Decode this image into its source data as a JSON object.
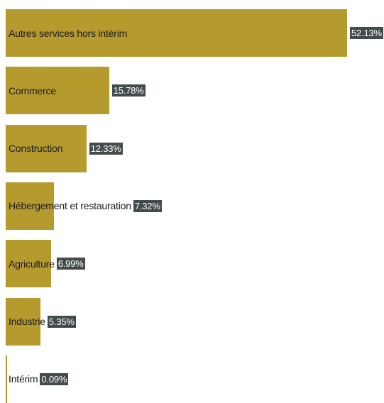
{
  "chart_data": {
    "type": "bar",
    "orientation": "horizontal",
    "categories": [
      "Autres services hors intérim",
      "Commerce",
      "Construction",
      "Hébergement et restauration",
      "Agriculture",
      "Industrie",
      "Intérim"
    ],
    "values": [
      52.13,
      15.78,
      12.33,
      7.32,
      6.99,
      5.35,
      0.09
    ],
    "value_labels": [
      "52.13%",
      "15.78%",
      "12.33%",
      "7.32%",
      "6.99%",
      "5.35%",
      "0.09%"
    ],
    "unit": "%",
    "xlim": [
      0,
      52.13
    ],
    "grid": false,
    "legend": "none",
    "bar_color": "#b59a2e",
    "label_bg_color": "#444b4d",
    "label_text_color": "#ffffff",
    "category_text_color": "#1c1c1c"
  }
}
